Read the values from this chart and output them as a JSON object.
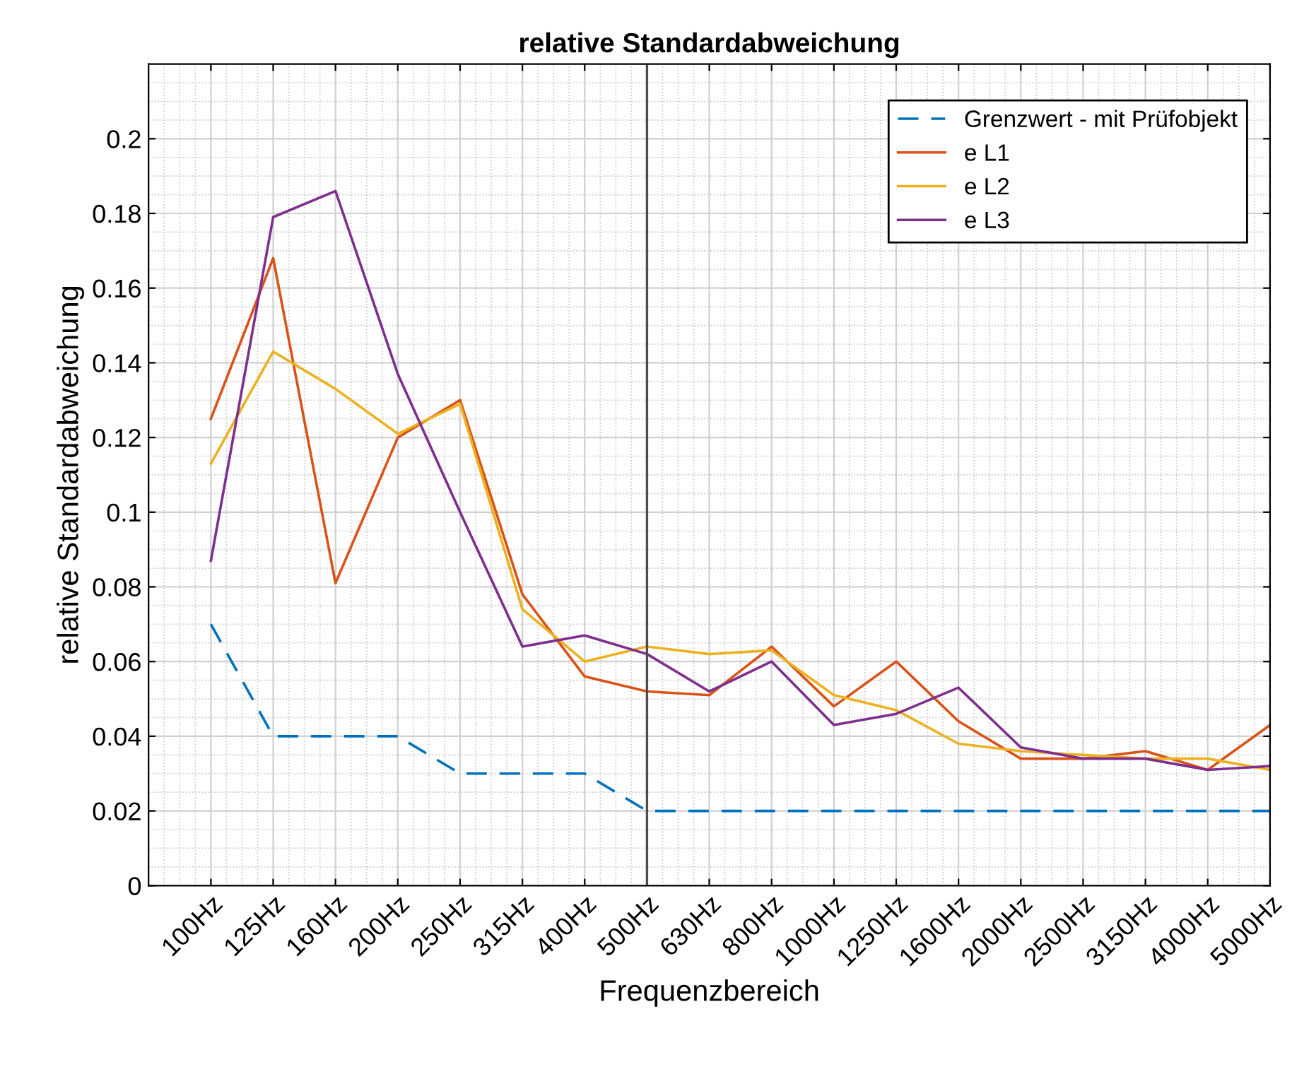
{
  "chart_data": {
    "type": "line",
    "title": "relative Standardabweichung",
    "xlabel": "Frequenzbereich",
    "ylabel": "relative Standardabweichung",
    "categories": [
      "100Hz",
      "125Hz",
      "160Hz",
      "200Hz",
      "250Hz",
      "315Hz",
      "400Hz",
      "500Hz",
      "630Hz",
      "800Hz",
      "1000Hz",
      "1250Hz",
      "1600Hz",
      "2000Hz",
      "2500Hz",
      "3150Hz",
      "4000Hz",
      "5000Hz"
    ],
    "series": [
      {
        "name": "Grenzwert - mit Prüfobjekt",
        "color": "#0072bd",
        "line_style": "dashed",
        "values": [
          0.07,
          0.04,
          0.04,
          0.04,
          0.03,
          0.03,
          0.03,
          0.02,
          0.02,
          0.02,
          0.02,
          0.02,
          0.02,
          0.02,
          0.02,
          0.02,
          0.02,
          0.02
        ]
      },
      {
        "name": "e L1",
        "color": "#d95319",
        "values": [
          0.125,
          0.168,
          0.081,
          0.12,
          0.13,
          0.078,
          0.056,
          0.052,
          0.051,
          0.064,
          0.048,
          0.06,
          0.044,
          0.034,
          0.034,
          0.036,
          0.031,
          0.043
        ]
      },
      {
        "name": "e L2",
        "color": "#edb120",
        "values": [
          0.113,
          0.143,
          0.133,
          0.121,
          0.129,
          0.074,
          0.06,
          0.064,
          0.062,
          0.063,
          0.051,
          0.047,
          0.038,
          0.036,
          0.035,
          0.034,
          0.034,
          0.031
        ]
      },
      {
        "name": "e L3",
        "color": "#7e2f8e",
        "values": [
          0.087,
          0.179,
          0.186,
          0.137,
          0.1,
          0.064,
          0.067,
          0.062,
          0.052,
          0.06,
          0.043,
          0.046,
          0.053,
          0.037,
          0.034,
          0.034,
          0.031,
          0.032
        ]
      }
    ],
    "ylim": [
      0,
      0.22
    ],
    "yticks": [
      0,
      0.02,
      0.04,
      0.06,
      0.08,
      0.1,
      0.12,
      0.14,
      0.16,
      0.18,
      0.2
    ],
    "ref_lines": [
      {
        "axis": "x",
        "value": "500Hz",
        "color": "#4d4d4d"
      }
    ],
    "grid": true,
    "legend": "top right",
    "line_style": "solid",
    "marker": "none"
  }
}
